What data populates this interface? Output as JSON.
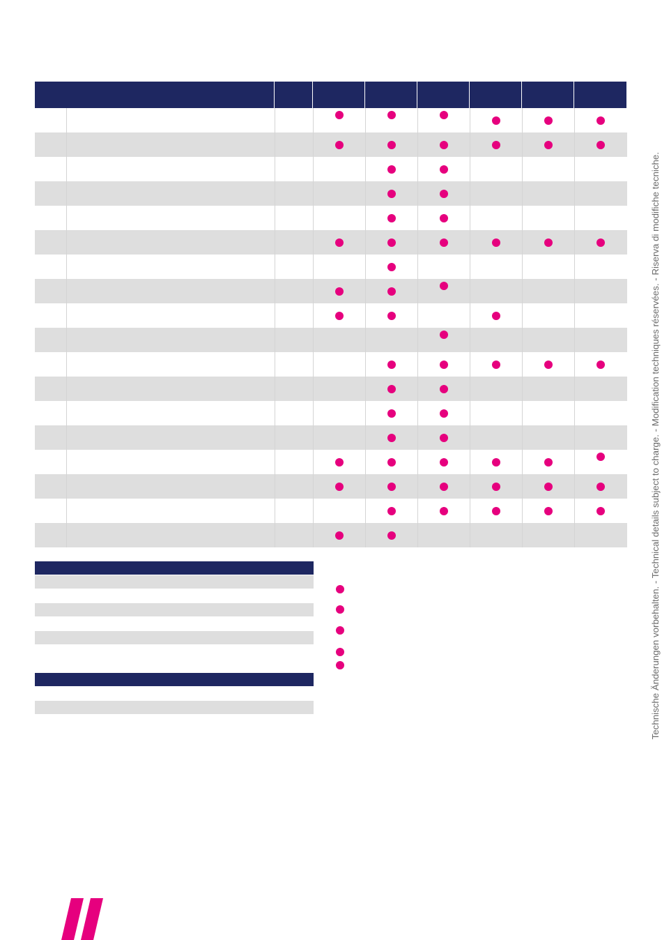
{
  "colors": {
    "header_navy": "#1e2761",
    "stripe_grey": "#dedede",
    "row_white": "#ffffff",
    "divider": "#d4d4d4",
    "dot_magenta": "#e6007e",
    "note_grey": "#6b6b6b"
  },
  "table": {
    "columns": 8,
    "rows": [
      {
        "marks": [
          true,
          true,
          true,
          true,
          true,
          true
        ]
      },
      {
        "marks": [
          true,
          true,
          true,
          true,
          true,
          true
        ]
      },
      {
        "marks": [
          false,
          true,
          true,
          false,
          false,
          false
        ]
      },
      {
        "marks": [
          false,
          true,
          true,
          false,
          false,
          false
        ]
      },
      {
        "marks": [
          false,
          true,
          true,
          false,
          false,
          false
        ]
      },
      {
        "marks": [
          true,
          true,
          true,
          true,
          true,
          true
        ]
      },
      {
        "marks": [
          false,
          true,
          false,
          false,
          false,
          false
        ]
      },
      {
        "marks": [
          true,
          true,
          true,
          false,
          false,
          false
        ]
      },
      {
        "marks": [
          true,
          true,
          false,
          true,
          false,
          false
        ]
      },
      {
        "marks": [
          false,
          false,
          true,
          false,
          false,
          false
        ]
      },
      {
        "marks": [
          false,
          true,
          true,
          true,
          true,
          true
        ]
      },
      {
        "marks": [
          false,
          true,
          true,
          false,
          false,
          false
        ]
      },
      {
        "marks": [
          false,
          true,
          true,
          false,
          false,
          false
        ]
      },
      {
        "marks": [
          false,
          true,
          true,
          false,
          false,
          false
        ]
      },
      {
        "marks": [
          true,
          true,
          true,
          true,
          true,
          true
        ]
      },
      {
        "marks": [
          true,
          true,
          true,
          true,
          true,
          true
        ]
      },
      {
        "marks": [
          false,
          true,
          true,
          true,
          true,
          true
        ]
      },
      {
        "marks": [
          true,
          true,
          false,
          false,
          false,
          false
        ]
      }
    ]
  },
  "legend": {
    "sections": [
      {
        "rows": 4
      },
      {
        "rows": 2
      }
    ],
    "dot_count": 5
  },
  "side_note": {
    "text": "Technische Änderungen vorbehalten. - Technical details subject to charge. - Modification techniques réservées. - Riserva di modifiche tecniche."
  },
  "brand": {
    "icon": "double-slash-logo"
  }
}
